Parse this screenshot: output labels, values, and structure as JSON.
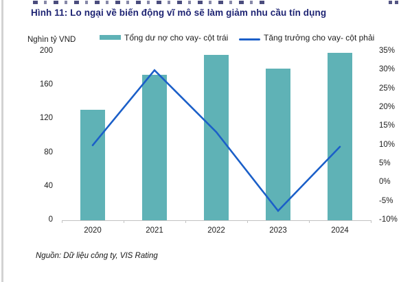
{
  "page": {
    "title": "Hình 11: Lo ngại về biến động vĩ mô sẽ làm giảm nhu cầu tín dụng",
    "source": "Nguồn: Dữ liệu công ty, VIS Rating"
  },
  "chart_data": {
    "type": "combo-bar-line",
    "title": "Hình 11: Lo ngại về biến động vĩ mô sẽ làm giảm nhu cầu tín dụng",
    "categories": [
      "2020",
      "2021",
      "2022",
      "2023",
      "2024"
    ],
    "series": [
      {
        "name": "Tổng dư nợ cho vay- cột trái",
        "type": "bar",
        "axis": "left",
        "color": "#5fb2b6",
        "values": [
          131,
          172,
          196,
          180,
          198
        ]
      },
      {
        "name": "Tăng trưởng cho vay- cột phải",
        "type": "line",
        "axis": "right",
        "color": "#1b5fc8",
        "values": [
          10,
          30,
          13.5,
          -7.5,
          9.6
        ]
      }
    ],
    "left_axis": {
      "label": "Nghìn tỷ VND",
      "min": 0,
      "max": 200,
      "ticks": [
        200,
        160,
        120,
        80,
        40,
        0
      ]
    },
    "right_axis": {
      "label": "",
      "min": -10,
      "max": 35,
      "ticks": [
        "35%",
        "30%",
        "25%",
        "20%",
        "15%",
        "10%",
        "5%",
        "0%",
        "-5%",
        "-10%"
      ]
    },
    "legend_position": "top",
    "grid": false
  }
}
